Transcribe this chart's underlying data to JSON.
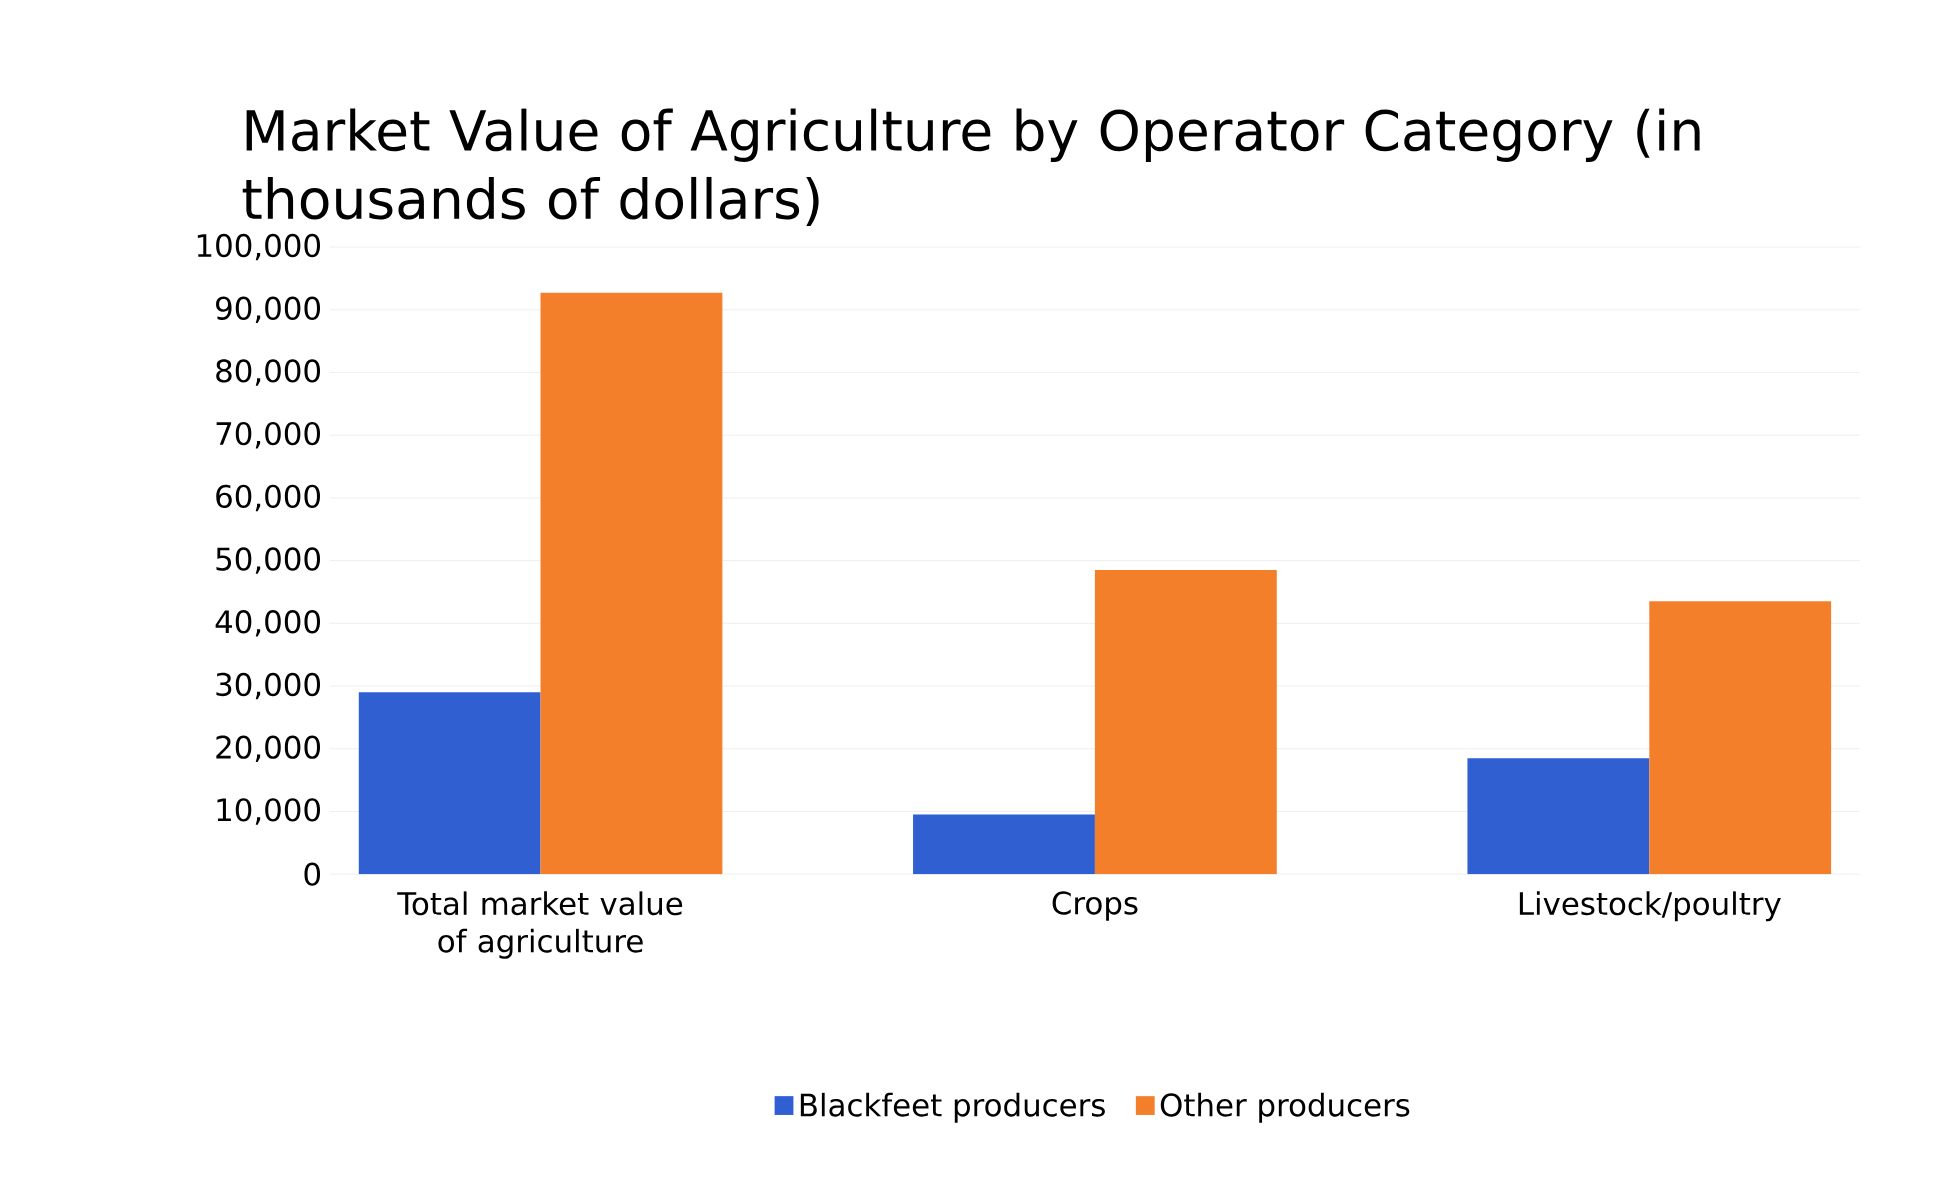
{
  "chart_data": {
    "type": "bar",
    "title": "Market Value of Agriculture by Operator Category (in thousands of dollars)",
    "categories": [
      "Total market value of agriculture",
      "Crops",
      "Livestock/poultry"
    ],
    "series": [
      {
        "name": "Blackfeet producers",
        "color": "#2f5fd0",
        "values": [
          29000,
          9500,
          18500
        ]
      },
      {
        "name": "Other producers",
        "color": "#f47f2a",
        "values": [
          92700,
          48500,
          43500
        ]
      }
    ],
    "ylim": [
      0,
      100000
    ],
    "yticks": [
      {
        "value": 0,
        "label": "0"
      },
      {
        "value": 10000,
        "label": "10,000"
      },
      {
        "value": 20000,
        "label": "20,000"
      },
      {
        "value": 30000,
        "label": "30,000"
      },
      {
        "value": 40000,
        "label": "40,000"
      },
      {
        "value": 50000,
        "label": "50,000"
      },
      {
        "value": 60000,
        "label": "60,000"
      },
      {
        "value": 70000,
        "label": "70,000"
      },
      {
        "value": 80000,
        "label": "80,000"
      },
      {
        "value": 90000,
        "label": "90,000"
      },
      {
        "value": 100000,
        "label": "100,000"
      }
    ],
    "grid": "y",
    "legend": "bottom"
  }
}
